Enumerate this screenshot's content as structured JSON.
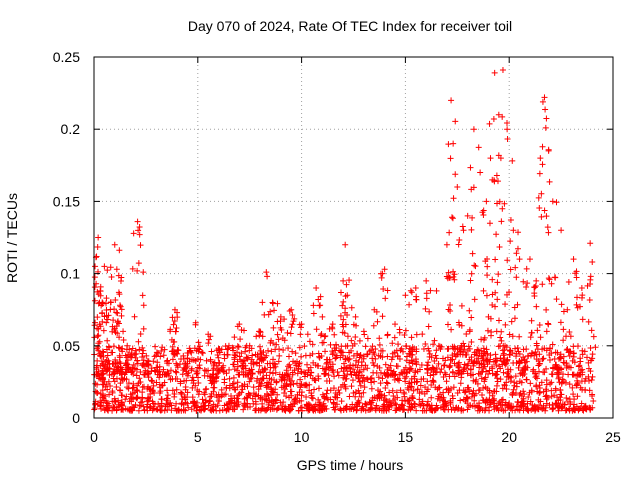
{
  "chart_data": {
    "type": "scatter",
    "title": "Day 070 of 2024, Rate Of TEC Index for receiver toil",
    "xlabel": "GPS time / hours",
    "ylabel": "ROTI / TECUs",
    "xlim": [
      0,
      25
    ],
    "ylim": [
      0,
      0.25
    ],
    "xticks": [
      0,
      5,
      10,
      15,
      20,
      25
    ],
    "xtick_labels": [
      "0",
      "5",
      "10",
      "15",
      "20",
      "25"
    ],
    "yticks": [
      0,
      0.05,
      0.1,
      0.15,
      0.2,
      0.25
    ],
    "ytick_labels": [
      "0",
      "0.05",
      "0.1",
      "0.15",
      "0.2",
      "0.25"
    ],
    "grid": true,
    "marker": "+",
    "series": [
      {
        "name": "ROTI",
        "color": "#ff0000",
        "x": [
          0.05,
          0.1,
          0.2,
          0.3,
          0.4,
          0.5,
          0.6,
          0.8,
          1.0,
          1.1,
          1.2,
          1.4,
          1.6,
          1.8,
          2.1,
          2.2,
          2.4,
          3.0,
          3.9,
          4.0,
          4.5,
          4.9,
          5.5,
          6.0,
          6.5,
          7.0,
          7.5,
          8.0,
          8.3,
          8.6,
          9.0,
          9.5,
          10.0,
          10.3,
          10.7,
          11.0,
          11.5,
          12.0,
          12.1,
          12.2,
          12.6,
          13.0,
          13.5,
          13.9,
          14.0,
          14.5,
          15.0,
          15.5,
          16.0,
          16.5,
          17.0,
          17.2,
          17.3,
          17.5,
          17.8,
          18.0,
          18.3,
          18.6,
          18.9,
          19.1,
          19.3,
          19.5,
          19.6,
          19.7,
          19.9,
          20.2,
          20.5,
          21.0,
          21.3,
          21.5,
          21.7,
          21.9,
          22.1,
          22.5,
          22.8,
          23.1,
          23.5,
          23.9,
          24.0,
          0.15,
          0.5,
          1.3,
          2.7,
          3.3,
          5.8,
          7.2,
          9.2,
          11.3,
          12.8,
          14.3,
          15.3,
          16.3,
          17.7,
          18.1,
          18.8,
          19.0,
          19.4,
          19.8,
          20.6,
          21.1,
          22.3,
          23.3
        ],
        "y": [
          0.105,
          0.093,
          0.125,
          0.088,
          0.079,
          0.105,
          0.083,
          0.08,
          0.12,
          0.103,
          0.087,
          0.06,
          0.05,
          0.045,
          0.136,
          0.127,
          0.04,
          0.035,
          0.075,
          0.073,
          0.045,
          0.066,
          0.058,
          0.048,
          0.05,
          0.065,
          0.05,
          0.06,
          0.101,
          0.08,
          0.07,
          0.075,
          0.065,
          0.058,
          0.09,
          0.07,
          0.065,
          0.095,
          0.12,
          0.085,
          0.07,
          0.06,
          0.075,
          0.1,
          0.103,
          0.065,
          0.085,
          0.09,
          0.095,
          0.088,
          0.12,
          0.22,
          0.19,
          0.16,
          0.13,
          0.14,
          0.2,
          0.17,
          0.15,
          0.18,
          0.239,
          0.21,
          0.18,
          0.241,
          0.2,
          0.13,
          0.11,
          0.11,
          0.095,
          0.18,
          0.222,
          0.185,
          0.15,
          0.13,
          0.075,
          0.11,
          0.09,
          0.121,
          0.108,
          0.03,
          0.025,
          0.035,
          0.02,
          0.03,
          0.025,
          0.03,
          0.02,
          0.035,
          0.025,
          0.03,
          0.04,
          0.035,
          0.05,
          0.06,
          0.045,
          0.07,
          0.06,
          0.05,
          0.04,
          0.045,
          0.035,
          0.03
        ],
        "band": {
          "description": "dense lower band of points between roughly 0.005 and 0.05 TECU/min across 0-24 h",
          "ymin": 0.005,
          "ymax": 0.05
        }
      }
    ]
  }
}
